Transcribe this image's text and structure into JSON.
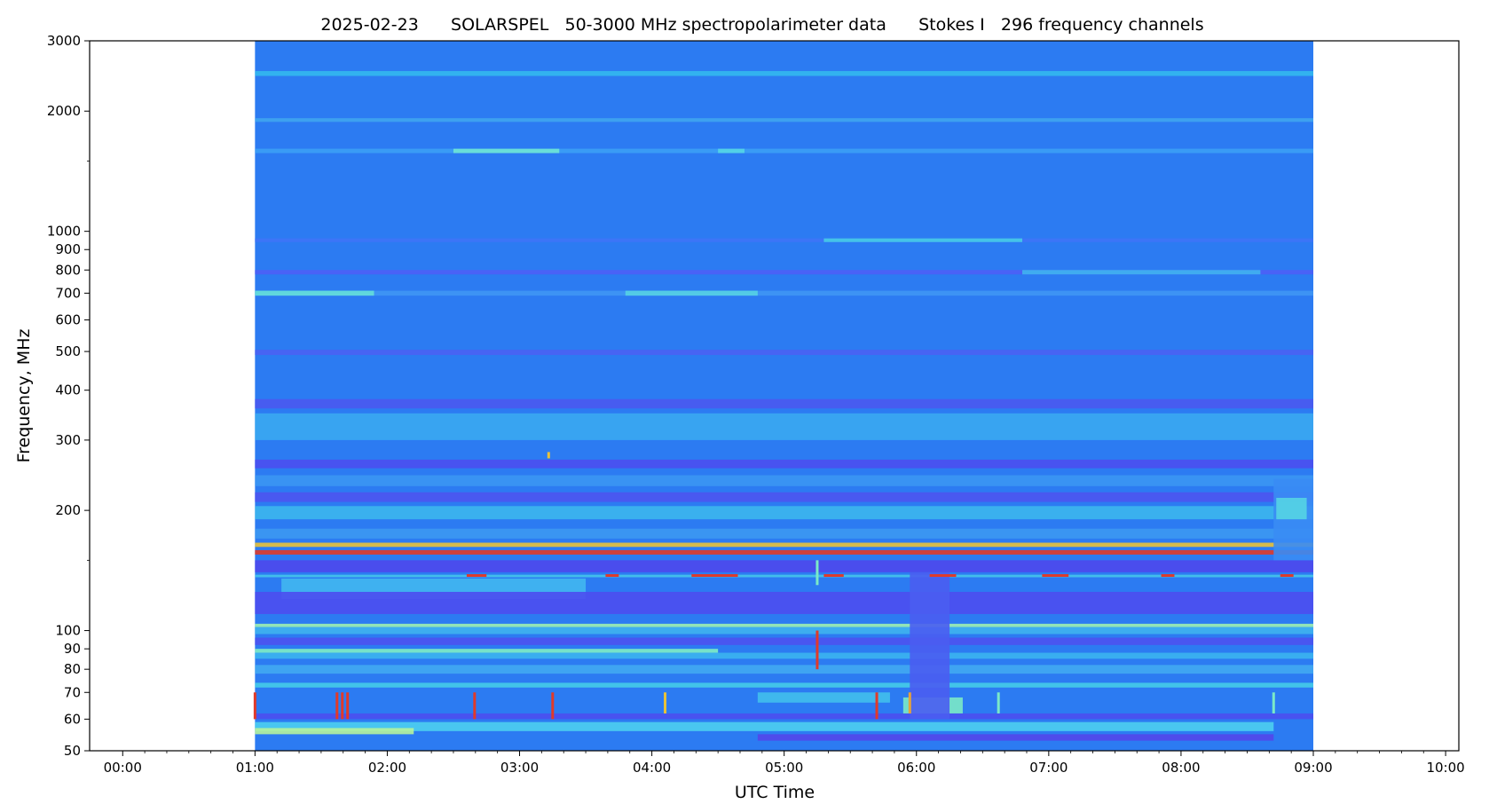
{
  "chart_data": {
    "type": "heatmap",
    "title": "2025-02-23      SOLARSPEL   50-3000 MHz spectropolarimeter data      Stokes I   296 frequency channels",
    "xlabel": "UTC Time",
    "ylabel": "Frequency, MHz",
    "x_range_hours": [
      -0.25,
      10.1
    ],
    "data_range_hours": [
      1.0,
      9.0
    ],
    "y_range_mhz": [
      50,
      3000
    ],
    "y_scale": "log",
    "grid": false,
    "colormap": "rainbow",
    "background_color": "#2c7bf2",
    "x_ticks": [
      {
        "value": 0,
        "label": "00:00"
      },
      {
        "value": 1,
        "label": "01:00"
      },
      {
        "value": 2,
        "label": "02:00"
      },
      {
        "value": 3,
        "label": "03:00"
      },
      {
        "value": 4,
        "label": "04:00"
      },
      {
        "value": 5,
        "label": "05:00"
      },
      {
        "value": 6,
        "label": "06:00"
      },
      {
        "value": 7,
        "label": "07:00"
      },
      {
        "value": 8,
        "label": "08:00"
      },
      {
        "value": 9,
        "label": "09:00"
      },
      {
        "value": 10,
        "label": "10:00"
      }
    ],
    "y_ticks": [
      {
        "value": 50,
        "label": "50"
      },
      {
        "value": 60,
        "label": "60"
      },
      {
        "value": 70,
        "label": "70"
      },
      {
        "value": 80,
        "label": "80"
      },
      {
        "value": 90,
        "label": "90"
      },
      {
        "value": 100,
        "label": "100"
      },
      {
        "value": 200,
        "label": "200"
      },
      {
        "value": 300,
        "label": "300"
      },
      {
        "value": 400,
        "label": "400"
      },
      {
        "value": 500,
        "label": "500"
      },
      {
        "value": 600,
        "label": "600"
      },
      {
        "value": 700,
        "label": "700"
      },
      {
        "value": 800,
        "label": "800"
      },
      {
        "value": 900,
        "label": "900"
      },
      {
        "value": 1000,
        "label": "1000"
      },
      {
        "value": 2000,
        "label": "2000"
      },
      {
        "value": 3000,
        "label": "3000"
      }
    ],
    "bands": [
      {
        "f0": 2450,
        "f1": 2520,
        "t0": 1.0,
        "t1": 9.0,
        "color": "#33b8ee"
      },
      {
        "f0": 1880,
        "f1": 1920,
        "t0": 1.0,
        "t1": 9.0,
        "color": "#3fa5f0"
      },
      {
        "f0": 1570,
        "f1": 1610,
        "t0": 1.0,
        "t1": 9.0,
        "color": "#3c9ff5"
      },
      {
        "f0": 1570,
        "f1": 1610,
        "t0": 2.5,
        "t1": 3.3,
        "color": "#6fe6d6"
      },
      {
        "f0": 1570,
        "f1": 1610,
        "t0": 4.5,
        "t1": 4.7,
        "color": "#55d6e6"
      },
      {
        "f0": 940,
        "f1": 960,
        "t0": 1.0,
        "t1": 9.0,
        "color": "#3e74f7"
      },
      {
        "f0": 940,
        "f1": 960,
        "t0": 5.3,
        "t1": 6.8,
        "color": "#45cce6"
      },
      {
        "f0": 780,
        "f1": 800,
        "t0": 1.0,
        "t1": 9.0,
        "color": "#4c5ff6"
      },
      {
        "f0": 780,
        "f1": 800,
        "t0": 6.8,
        "t1": 8.6,
        "color": "#3fb4ef"
      },
      {
        "f0": 690,
        "f1": 710,
        "t0": 1.0,
        "t1": 9.0,
        "color": "#3f96f4"
      },
      {
        "f0": 690,
        "f1": 710,
        "t0": 1.0,
        "t1": 1.9,
        "color": "#64dfda"
      },
      {
        "f0": 690,
        "f1": 710,
        "t0": 3.8,
        "t1": 4.8,
        "color": "#55d2e4"
      },
      {
        "f0": 490,
        "f1": 505,
        "t0": 1.0,
        "t1": 9.0,
        "color": "#4a62f3"
      },
      {
        "f0": 360,
        "f1": 380,
        "t0": 1.0,
        "t1": 9.0,
        "color": "#4a59f0"
      },
      {
        "f0": 300,
        "f1": 350,
        "t0": 1.0,
        "t1": 9.0,
        "color": "#3aa9f1"
      },
      {
        "f0": 255,
        "f1": 268,
        "t0": 1.0,
        "t1": 9.0,
        "color": "#4b4ff0"
      },
      {
        "f0": 230,
        "f1": 245,
        "t0": 1.0,
        "t1": 9.0,
        "color": "#3b96f3"
      },
      {
        "f0": 210,
        "f1": 222,
        "t0": 1.0,
        "t1": 9.0,
        "color": "#4d55ef"
      },
      {
        "f0": 190,
        "f1": 205,
        "t0": 1.0,
        "t1": 9.0,
        "color": "#3cb6ed"
      },
      {
        "f0": 170,
        "f1": 180,
        "t0": 1.0,
        "t1": 9.0,
        "color": "#3c98f2"
      },
      {
        "f0": 162,
        "f1": 166,
        "t0": 1.0,
        "t1": 9.0,
        "color": "#e8c23a"
      },
      {
        "f0": 155,
        "f1": 159,
        "t0": 1.0,
        "t1": 9.0,
        "color": "#e03a2a"
      },
      {
        "f0": 140,
        "f1": 150,
        "t0": 1.0,
        "t1": 9.0,
        "color": "#4e48ec"
      },
      {
        "f0": 136,
        "f1": 138,
        "t0": 1.0,
        "t1": 9.0,
        "color": "#44c4ea"
      },
      {
        "f0": 120,
        "f1": 135,
        "t0": 1.2,
        "t1": 3.5,
        "color": "#41b7ef"
      },
      {
        "f0": 110,
        "f1": 125,
        "t0": 1.0,
        "t1": 9.0,
        "color": "#4c4eef"
      },
      {
        "f0": 102,
        "f1": 104,
        "t0": 1.0,
        "t1": 9.0,
        "color": "#9df0b0"
      },
      {
        "f0": 98,
        "f1": 102,
        "t0": 1.0,
        "t1": 9.0,
        "color": "#3fb2ee"
      },
      {
        "f0": 92,
        "f1": 96,
        "t0": 1.0,
        "t1": 9.0,
        "color": "#4c52ef"
      },
      {
        "f0": 88,
        "f1": 90,
        "t0": 1.0,
        "t1": 4.5,
        "color": "#7eedc4"
      },
      {
        "f0": 85,
        "f1": 88,
        "t0": 1.0,
        "t1": 9.0,
        "color": "#3bb4f0"
      },
      {
        "f0": 78,
        "f1": 82,
        "t0": 1.0,
        "t1": 9.0,
        "color": "#41a8f2"
      },
      {
        "f0": 72,
        "f1": 74,
        "t0": 1.0,
        "t1": 9.0,
        "color": "#45cce8"
      },
      {
        "f0": 66,
        "f1": 70,
        "t0": 4.8,
        "t1": 5.8,
        "color": "#41bfec"
      },
      {
        "f0": 62,
        "f1": 68,
        "t0": 5.9,
        "t1": 6.35,
        "color": "#7be9c7"
      },
      {
        "f0": 60,
        "f1": 62,
        "t0": 1.0,
        "t1": 9.0,
        "color": "#4b4ff0"
      },
      {
        "f0": 56,
        "f1": 59,
        "t0": 1.0,
        "t1": 8.7,
        "color": "#4ccff0"
      },
      {
        "f0": 55,
        "f1": 57,
        "t0": 1.0,
        "t1": 2.2,
        "color": "#b6f39c"
      },
      {
        "f0": 53,
        "f1": 55,
        "t0": 4.8,
        "t1": 8.7,
        "color": "#5346ea"
      },
      {
        "f0": 150,
        "f1": 240,
        "t0": 8.7,
        "t1": 9.0,
        "color": "#3a8cf4"
      },
      {
        "f0": 190,
        "f1": 215,
        "t0": 8.72,
        "t1": 8.95,
        "color": "#55d4e4"
      },
      {
        "f0": 60,
        "f1": 140,
        "t0": 5.95,
        "t1": 6.25,
        "color": "#4a5df1"
      }
    ],
    "bursts": [
      {
        "t": 1.0,
        "f0": 60,
        "f1": 70,
        "color": "#e03a2a"
      },
      {
        "t": 1.62,
        "f0": 60,
        "f1": 70,
        "color": "#e03a2a"
      },
      {
        "t": 1.66,
        "f0": 60,
        "f1": 70,
        "color": "#e03a2a"
      },
      {
        "t": 1.7,
        "f0": 60,
        "f1": 70,
        "color": "#e03a2a"
      },
      {
        "t": 2.66,
        "f0": 60,
        "f1": 70,
        "color": "#e03a2a"
      },
      {
        "t": 3.25,
        "f0": 60,
        "f1": 70,
        "color": "#e03a2a"
      },
      {
        "t": 4.1,
        "f0": 62,
        "f1": 70,
        "color": "#e8c23a"
      },
      {
        "t": 5.25,
        "f0": 80,
        "f1": 100,
        "color": "#e03a2a"
      },
      {
        "t": 5.25,
        "f0": 130,
        "f1": 150,
        "color": "#7be9c7"
      },
      {
        "t": 5.7,
        "f0": 60,
        "f1": 70,
        "color": "#e03a2a"
      },
      {
        "t": 5.95,
        "f0": 62,
        "f1": 70,
        "color": "#e8a23a"
      },
      {
        "t": 6.62,
        "f0": 62,
        "f1": 70,
        "color": "#7be9c7"
      },
      {
        "t": 8.7,
        "f0": 62,
        "f1": 70,
        "color": "#7be9c7"
      },
      {
        "t": 3.22,
        "f0": 270,
        "f1": 280,
        "color": "#e8c23a"
      }
    ],
    "hotspots": [
      {
        "f": 137,
        "t0": 2.6,
        "t1": 2.75,
        "color": "#e03a2a"
      },
      {
        "f": 137,
        "t0": 3.65,
        "t1": 3.75,
        "color": "#e03a2a"
      },
      {
        "f": 137,
        "t0": 4.3,
        "t1": 4.65,
        "color": "#e03a2a"
      },
      {
        "f": 137,
        "t0": 5.3,
        "t1": 5.45,
        "color": "#e03a2a"
      },
      {
        "f": 137,
        "t0": 6.1,
        "t1": 6.3,
        "color": "#e03a2a"
      },
      {
        "f": 137,
        "t0": 6.95,
        "t1": 7.15,
        "color": "#e03a2a"
      },
      {
        "f": 137,
        "t0": 7.85,
        "t1": 7.95,
        "color": "#e03a2a"
      },
      {
        "f": 137,
        "t0": 8.75,
        "t1": 8.85,
        "color": "#e03a2a"
      }
    ]
  }
}
